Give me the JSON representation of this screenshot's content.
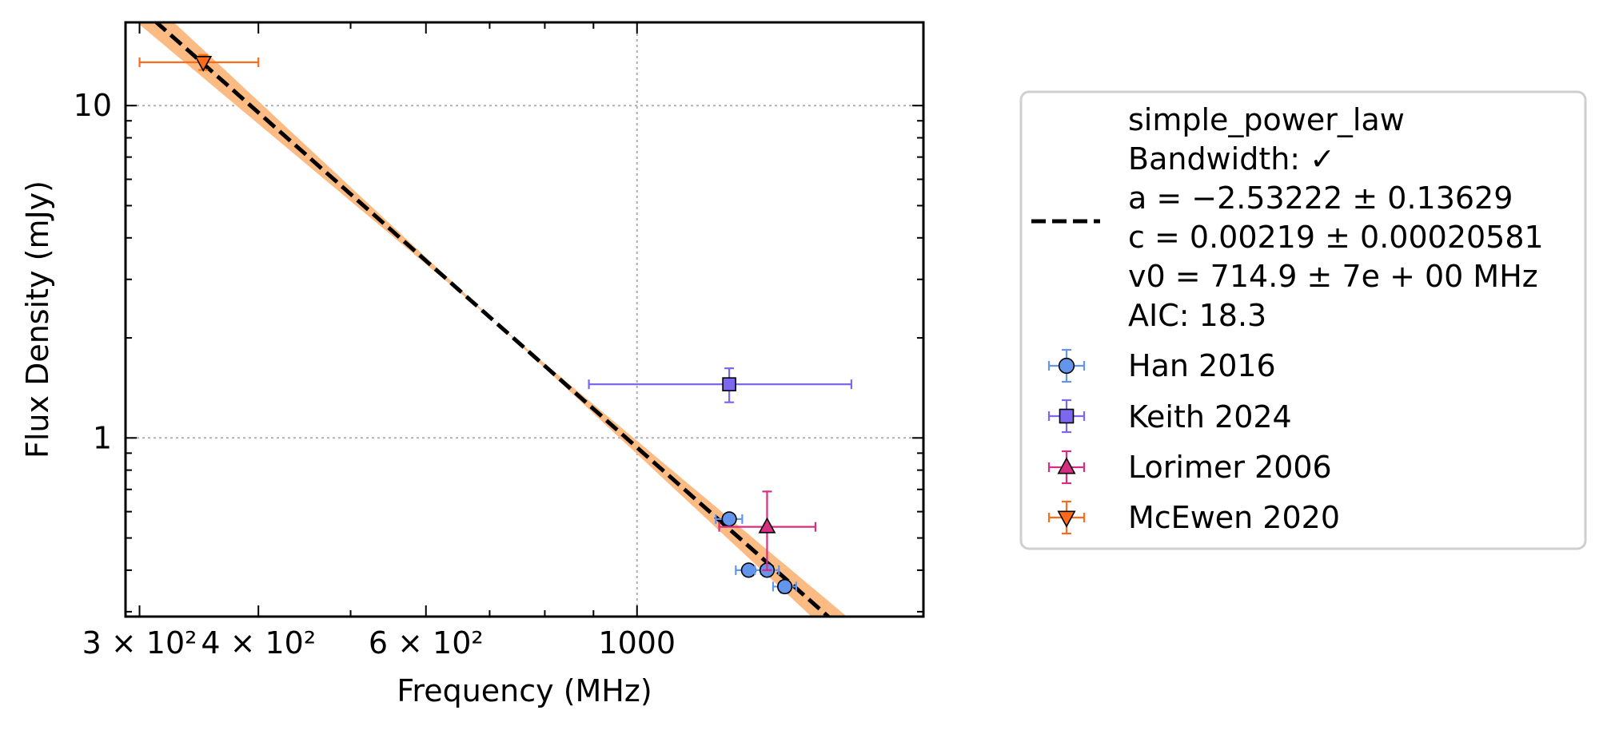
{
  "chart_data": {
    "type": "scatter",
    "xlabel": "Frequency (MHz)",
    "ylabel": "Flux Density (mJy)",
    "xscale": "log",
    "yscale": "log",
    "xlim": [
      290,
      2000
    ],
    "ylim": [
      0.29,
      17.8
    ],
    "grid": "dotted at major ticks",
    "legend_position": "right, outside",
    "x_ticks": [
      {
        "value": 300,
        "label": "3 × 10²"
      },
      {
        "value": 400,
        "label": "4 × 10²"
      },
      {
        "value": 600,
        "label": "6 × 10²"
      },
      {
        "value": 1000,
        "label": "1000"
      }
    ],
    "y_ticks": [
      {
        "value": 1,
        "label": "1"
      },
      {
        "value": 10,
        "label": "10"
      }
    ],
    "fit": {
      "legend_lines": [
        "simple_power_law",
        "Bandwidth: ✓",
        "a = −2.53222 ± 0.13629",
        "c = 0.00219 ± 0.00020581",
        "v0 = 714.9 ± 7e + 00 MHz",
        "AIC: 18.3"
      ],
      "a": -2.53222,
      "a_err": 0.13629,
      "c": 0.00219,
      "v0": 714.9,
      "line_color": "#000000",
      "band_color": "#fdbb84",
      "range": [
        300,
        1800
      ]
    },
    "series": [
      {
        "name": "Han 2016",
        "marker": "circle",
        "color": "#6495ED",
        "points": [
          {
            "x": 1250,
            "y": 0.57,
            "xerr": 40,
            "yerr": 0.02
          },
          {
            "x": 1310,
            "y": 0.4,
            "xerr": 40,
            "yerr": 0.015
          },
          {
            "x": 1370,
            "y": 0.4,
            "xerr": 40,
            "yerr": 0.015
          },
          {
            "x": 1430,
            "y": 0.357,
            "xerr": 40,
            "yerr": 0.015
          }
        ]
      },
      {
        "name": "Keith 2024",
        "marker": "square",
        "color": "#7B68EE",
        "points": [
          {
            "x": 1250,
            "y": 1.45,
            "xlo": 890,
            "xhi": 1680,
            "ylo": 1.28,
            "yhi": 1.62
          }
        ]
      },
      {
        "name": "Lorimer 2006",
        "marker": "triangle-up",
        "color": "#d62f82",
        "points": [
          {
            "x": 1370,
            "y": 0.54,
            "xlo": 1220,
            "xhi": 1540,
            "ylo": 0.4,
            "yhi": 0.69
          }
        ]
      },
      {
        "name": "McEwen 2020",
        "marker": "triangle-down",
        "color": "#ff6b1a",
        "points": [
          {
            "x": 350,
            "y": 13.5,
            "xlo": 300,
            "xhi": 400,
            "ylo": 12.8,
            "yhi": 14.2
          }
        ]
      }
    ]
  }
}
